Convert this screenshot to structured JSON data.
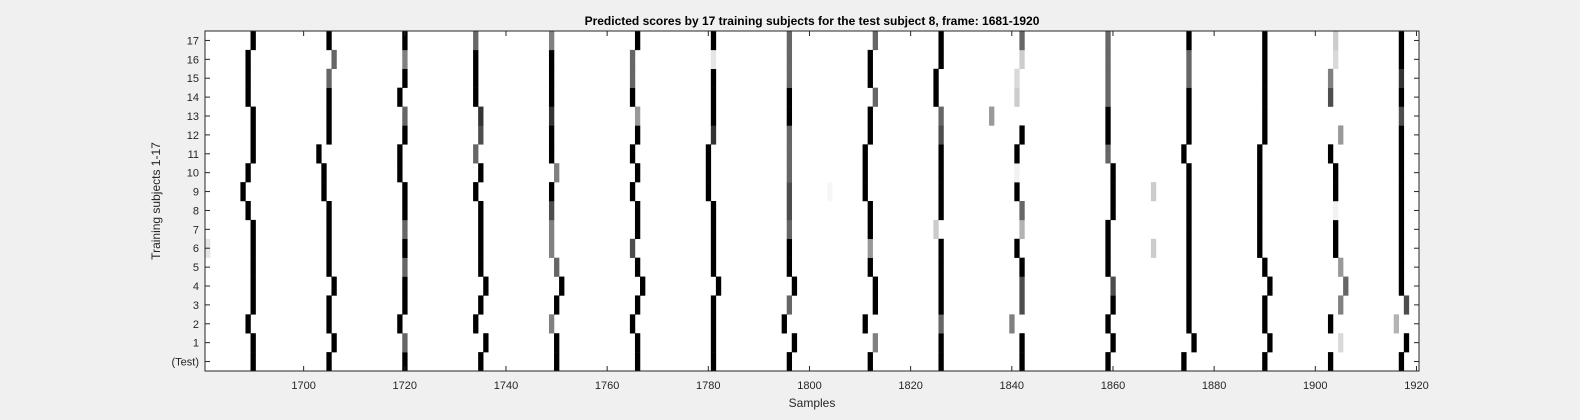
{
  "chart_data": {
    "type": "heatmap",
    "title": "Predicted scores by 17 training subjects for the test subject 8, frame: 1681-1920",
    "xlabel": "Samples",
    "ylabel": "Training subjects 1-17",
    "xlim": [
      1681,
      1920
    ],
    "xticks": [
      1700,
      1720,
      1740,
      1760,
      1780,
      1800,
      1820,
      1840,
      1860,
      1880,
      1900,
      1920
    ],
    "yticklabels": [
      "(Test)",
      "1",
      "2",
      "3",
      "4",
      "5",
      "6",
      "7",
      "8",
      "9",
      "10",
      "11",
      "12",
      "13",
      "14",
      "15",
      "16",
      "17"
    ],
    "colormap": "gray-reversed",
    "value_range": [
      0,
      1
    ],
    "grid": false,
    "legend": "none",
    "rows": [
      {
        "label": "(Test)",
        "marks": [
          [
            1690,
            1.0
          ],
          [
            1705,
            1.0
          ],
          [
            1720,
            1.0
          ],
          [
            1735,
            1.0
          ],
          [
            1750,
            1.0
          ],
          [
            1766,
            1.0
          ],
          [
            1781,
            1.0
          ],
          [
            1796,
            1.0
          ],
          [
            1812,
            1.0
          ],
          [
            1826,
            1.0
          ],
          [
            1842,
            1.0
          ],
          [
            1859,
            1.0
          ],
          [
            1874,
            1.0
          ],
          [
            1890,
            1.0
          ],
          [
            1903,
            1.0
          ],
          [
            1917,
            1.0
          ]
        ]
      },
      {
        "label": "1",
        "marks": [
          [
            1690,
            1.0
          ],
          [
            1706,
            1.0
          ],
          [
            1720,
            0.6
          ],
          [
            1736,
            1.0
          ],
          [
            1750,
            1.0
          ],
          [
            1766,
            1.0
          ],
          [
            1781,
            1.0
          ],
          [
            1797,
            1.0
          ],
          [
            1813,
            0.5
          ],
          [
            1826,
            1.0
          ],
          [
            1842,
            1.0
          ],
          [
            1860,
            1.0
          ],
          [
            1876,
            1.0
          ],
          [
            1891,
            1.0
          ],
          [
            1905,
            0.15
          ],
          [
            1918,
            1.0
          ]
        ]
      },
      {
        "label": "2",
        "marks": [
          [
            1689,
            1.0
          ],
          [
            1705,
            1.0
          ],
          [
            1719,
            1.0
          ],
          [
            1734,
            1.0
          ],
          [
            1749,
            0.5
          ],
          [
            1765,
            1.0
          ],
          [
            1781,
            1.0
          ],
          [
            1795,
            1.0
          ],
          [
            1811,
            1.0
          ],
          [
            1826,
            0.6
          ],
          [
            1840,
            0.5
          ],
          [
            1859,
            1.0
          ],
          [
            1875,
            1.0
          ],
          [
            1890,
            1.0
          ],
          [
            1903,
            1.0
          ],
          [
            1916,
            0.3
          ]
        ]
      },
      {
        "label": "3",
        "marks": [
          [
            1690,
            1.0
          ],
          [
            1705,
            1.0
          ],
          [
            1720,
            1.0
          ],
          [
            1735,
            1.0
          ],
          [
            1750,
            1.0
          ],
          [
            1766,
            1.0
          ],
          [
            1781,
            1.0
          ],
          [
            1796,
            0.6
          ],
          [
            1813,
            1.0
          ],
          [
            1826,
            1.0
          ],
          [
            1842,
            0.7
          ],
          [
            1860,
            1.0
          ],
          [
            1875,
            1.0
          ],
          [
            1890,
            1.0
          ],
          [
            1905,
            0.5
          ],
          [
            1918,
            0.7
          ]
        ]
      },
      {
        "label": "4",
        "marks": [
          [
            1690,
            1.0
          ],
          [
            1706,
            1.0
          ],
          [
            1720,
            1.0
          ],
          [
            1736,
            1.0
          ],
          [
            1751,
            1.0
          ],
          [
            1767,
            1.0
          ],
          [
            1782,
            1.0
          ],
          [
            1797,
            1.0
          ],
          [
            1813,
            1.0
          ],
          [
            1826,
            1.0
          ],
          [
            1842,
            0.7
          ],
          [
            1860,
            0.7
          ],
          [
            1875,
            1.0
          ],
          [
            1891,
            1.0
          ],
          [
            1906,
            0.6
          ],
          [
            1917,
            1.0
          ]
        ]
      },
      {
        "label": "5",
        "marks": [
          [
            1690,
            1.0
          ],
          [
            1705,
            1.0
          ],
          [
            1720,
            0.6
          ],
          [
            1735,
            1.0
          ],
          [
            1750,
            0.6
          ],
          [
            1766,
            1.0
          ],
          [
            1781,
            1.0
          ],
          [
            1796,
            1.0
          ],
          [
            1812,
            1.0
          ],
          [
            1826,
            1.0
          ],
          [
            1842,
            1.0
          ],
          [
            1859,
            1.0
          ],
          [
            1875,
            1.0
          ],
          [
            1890,
            1.0
          ],
          [
            1905,
            0.4
          ],
          [
            1917,
            1.0
          ]
        ]
      },
      {
        "label": "6",
        "marks": [
          [
            1681,
            0.1
          ],
          [
            1690,
            1.0
          ],
          [
            1705,
            1.0
          ],
          [
            1720,
            1.0
          ],
          [
            1735,
            1.0
          ],
          [
            1749,
            0.5
          ],
          [
            1765,
            0.7
          ],
          [
            1781,
            1.0
          ],
          [
            1796,
            1.0
          ],
          [
            1812,
            0.4
          ],
          [
            1826,
            1.0
          ],
          [
            1841,
            1.0
          ],
          [
            1859,
            1.0
          ],
          [
            1868,
            0.2
          ],
          [
            1875,
            1.0
          ],
          [
            1889,
            1.0
          ],
          [
            1904,
            1.0
          ],
          [
            1917,
            1.0
          ]
        ]
      },
      {
        "label": "7",
        "marks": [
          [
            1690,
            1.0
          ],
          [
            1705,
            1.0
          ],
          [
            1720,
            0.6
          ],
          [
            1735,
            1.0
          ],
          [
            1749,
            0.5
          ],
          [
            1766,
            1.0
          ],
          [
            1781,
            1.0
          ],
          [
            1796,
            0.6
          ],
          [
            1812,
            1.0
          ],
          [
            1825,
            0.2
          ],
          [
            1842,
            0.3
          ],
          [
            1859,
            1.0
          ],
          [
            1875,
            1.0
          ],
          [
            1889,
            1.0
          ],
          [
            1904,
            1.0
          ],
          [
            1917,
            1.0
          ]
        ]
      },
      {
        "label": "8",
        "marks": [
          [
            1689,
            1.0
          ],
          [
            1705,
            1.0
          ],
          [
            1720,
            1.0
          ],
          [
            1735,
            1.0
          ],
          [
            1749,
            0.7
          ],
          [
            1766,
            1.0
          ],
          [
            1781,
            1.0
          ],
          [
            1796,
            0.7
          ],
          [
            1812,
            1.0
          ],
          [
            1826,
            1.0
          ],
          [
            1842,
            0.6
          ],
          [
            1860,
            1.0
          ],
          [
            1875,
            1.0
          ],
          [
            1889,
            1.0
          ],
          [
            1904,
            0.05
          ],
          [
            1917,
            1.0
          ]
        ]
      },
      {
        "label": "9",
        "marks": [
          [
            1688,
            1.0
          ],
          [
            1704,
            1.0
          ],
          [
            1720,
            1.0
          ],
          [
            1734,
            1.0
          ],
          [
            1749,
            1.0
          ],
          [
            1765,
            1.0
          ],
          [
            1780,
            1.0
          ],
          [
            1796,
            0.7
          ],
          [
            1804,
            0.03
          ],
          [
            1811,
            1.0
          ],
          [
            1826,
            1.0
          ],
          [
            1841,
            1.0
          ],
          [
            1860,
            1.0
          ],
          [
            1868,
            0.2
          ],
          [
            1875,
            1.0
          ],
          [
            1889,
            1.0
          ],
          [
            1904,
            1.0
          ],
          [
            1917,
            1.0
          ]
        ]
      },
      {
        "label": "10",
        "marks": [
          [
            1689,
            1.0
          ],
          [
            1704,
            1.0
          ],
          [
            1719,
            1.0
          ],
          [
            1735,
            1.0
          ],
          [
            1750,
            0.5
          ],
          [
            1766,
            1.0
          ],
          [
            1780,
            1.0
          ],
          [
            1796,
            0.6
          ],
          [
            1811,
            1.0
          ],
          [
            1826,
            1.0
          ],
          [
            1841,
            0.05
          ],
          [
            1860,
            1.0
          ],
          [
            1875,
            1.0
          ],
          [
            1889,
            1.0
          ],
          [
            1904,
            1.0
          ],
          [
            1917,
            1.0
          ]
        ]
      },
      {
        "label": "11",
        "marks": [
          [
            1690,
            1.0
          ],
          [
            1703,
            1.0
          ],
          [
            1719,
            1.0
          ],
          [
            1734,
            0.6
          ],
          [
            1749,
            1.0
          ],
          [
            1765,
            1.0
          ],
          [
            1780,
            1.0
          ],
          [
            1796,
            0.6
          ],
          [
            1811,
            1.0
          ],
          [
            1826,
            1.0
          ],
          [
            1841,
            1.0
          ],
          [
            1859,
            0.6
          ],
          [
            1874,
            1.0
          ],
          [
            1889,
            1.0
          ],
          [
            1903,
            1.0
          ],
          [
            1917,
            1.0
          ]
        ]
      },
      {
        "label": "12",
        "marks": [
          [
            1690,
            1.0
          ],
          [
            1705,
            1.0
          ],
          [
            1720,
            1.0
          ],
          [
            1735,
            0.7
          ],
          [
            1749,
            1.0
          ],
          [
            1766,
            1.0
          ],
          [
            1781,
            0.8
          ],
          [
            1796,
            0.6
          ],
          [
            1812,
            1.0
          ],
          [
            1826,
            0.7
          ],
          [
            1842,
            1.0
          ],
          [
            1859,
            1.0
          ],
          [
            1875,
            1.0
          ],
          [
            1890,
            1.0
          ],
          [
            1905,
            0.4
          ],
          [
            1917,
            1.0
          ]
        ]
      },
      {
        "label": "13",
        "marks": [
          [
            1690,
            1.0
          ],
          [
            1705,
            1.0
          ],
          [
            1720,
            0.6
          ],
          [
            1735,
            0.8
          ],
          [
            1749,
            0.8
          ],
          [
            1766,
            0.4
          ],
          [
            1781,
            1.0
          ],
          [
            1796,
            1.0
          ],
          [
            1812,
            1.0
          ],
          [
            1826,
            0.6
          ],
          [
            1836,
            0.4
          ],
          [
            1859,
            1.0
          ],
          [
            1875,
            1.0
          ],
          [
            1890,
            1.0
          ],
          [
            1917,
            0.7
          ]
        ]
      },
      {
        "label": "14",
        "marks": [
          [
            1689,
            1.0
          ],
          [
            1705,
            1.0
          ],
          [
            1719,
            1.0
          ],
          [
            1734,
            1.0
          ],
          [
            1749,
            1.0
          ],
          [
            1765,
            1.0
          ],
          [
            1781,
            1.0
          ],
          [
            1796,
            1.0
          ],
          [
            1813,
            0.6
          ],
          [
            1825,
            1.0
          ],
          [
            1841,
            0.2
          ],
          [
            1859,
            0.6
          ],
          [
            1875,
            1.0
          ],
          [
            1890,
            1.0
          ],
          [
            1903,
            0.7
          ],
          [
            1917,
            1.0
          ]
        ]
      },
      {
        "label": "15",
        "marks": [
          [
            1689,
            1.0
          ],
          [
            1705,
            0.6
          ],
          [
            1720,
            1.0
          ],
          [
            1734,
            1.0
          ],
          [
            1749,
            1.0
          ],
          [
            1765,
            0.6
          ],
          [
            1781,
            1.0
          ],
          [
            1796,
            0.6
          ],
          [
            1812,
            1.0
          ],
          [
            1825,
            1.0
          ],
          [
            1841,
            0.15
          ],
          [
            1859,
            0.6
          ],
          [
            1875,
            0.6
          ],
          [
            1890,
            1.0
          ],
          [
            1903,
            0.5
          ],
          [
            1917,
            0.8
          ]
        ]
      },
      {
        "label": "16",
        "marks": [
          [
            1689,
            1.0
          ],
          [
            1706,
            0.6
          ],
          [
            1720,
            0.5
          ],
          [
            1734,
            1.0
          ],
          [
            1749,
            1.0
          ],
          [
            1765,
            0.6
          ],
          [
            1781,
            0.1
          ],
          [
            1796,
            0.6
          ],
          [
            1812,
            1.0
          ],
          [
            1826,
            1.0
          ],
          [
            1842,
            0.2
          ],
          [
            1859,
            0.6
          ],
          [
            1875,
            0.6
          ],
          [
            1890,
            1.0
          ],
          [
            1904,
            0.15
          ],
          [
            1917,
            1.0
          ]
        ]
      },
      {
        "label": "17",
        "marks": [
          [
            1690,
            1.0
          ],
          [
            1705,
            1.0
          ],
          [
            1720,
            1.0
          ],
          [
            1734,
            0.6
          ],
          [
            1749,
            0.5
          ],
          [
            1766,
            1.0
          ],
          [
            1781,
            1.0
          ],
          [
            1796,
            0.6
          ],
          [
            1813,
            0.6
          ],
          [
            1826,
            1.0
          ],
          [
            1842,
            0.6
          ],
          [
            1859,
            0.6
          ],
          [
            1875,
            1.0
          ],
          [
            1890,
            1.0
          ],
          [
            1904,
            0.2
          ],
          [
            1917,
            1.0
          ]
        ]
      }
    ]
  }
}
